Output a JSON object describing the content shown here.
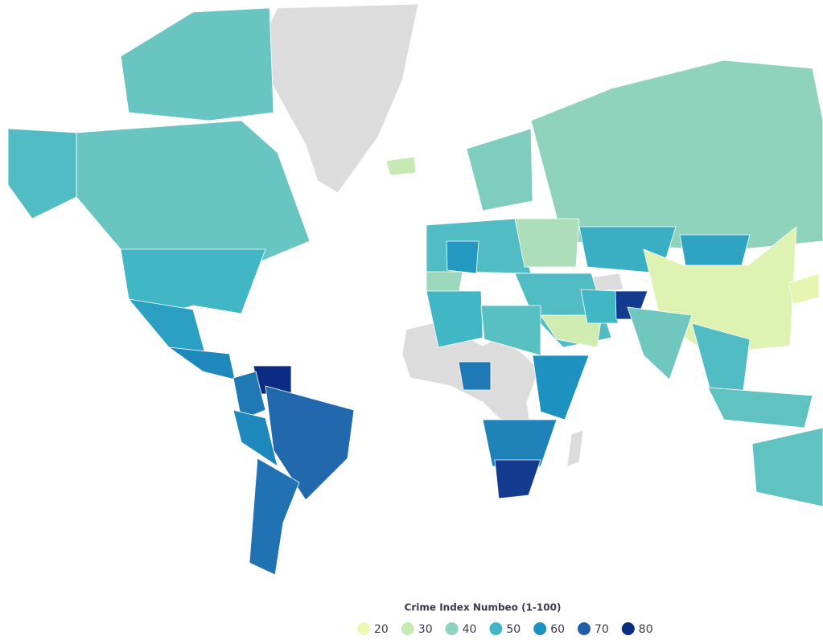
{
  "map": {
    "region_values": [
      45,
      45,
      48,
      50,
      56,
      62,
      83,
      65,
      68,
      62,
      66,
      30,
      40,
      42,
      48,
      58,
      38,
      35,
      52,
      24,
      55,
      48,
      28,
      50,
      77,
      44,
      48,
      46,
      22,
      46,
      50,
      47,
      65,
      60,
      63,
      77
    ]
  },
  "legend": {
    "title": "Crime Index Numbeo (1-100)",
    "items": [
      {
        "value": 20,
        "color": "#edf8b1"
      },
      {
        "value": 30,
        "color": "#c7e9b4"
      },
      {
        "value": 40,
        "color": "#8fd3bd"
      },
      {
        "value": 50,
        "color": "#41b6c4"
      },
      {
        "value": 60,
        "color": "#1d91c0"
      },
      {
        "value": 70,
        "color": "#225ea8"
      },
      {
        "value": 80,
        "color": "#0c2c84"
      }
    ]
  }
}
